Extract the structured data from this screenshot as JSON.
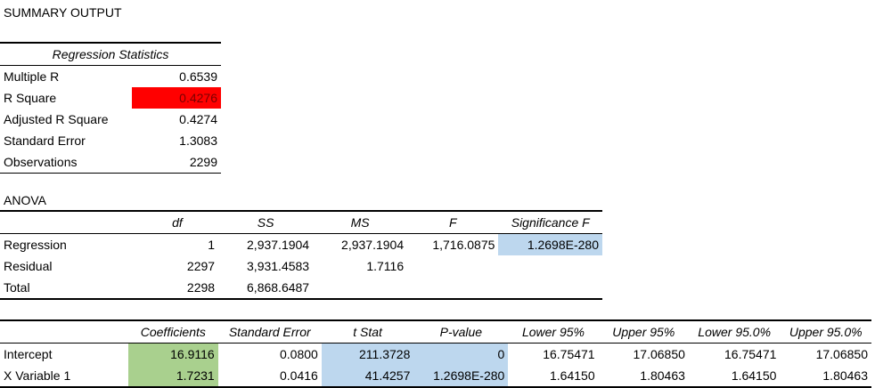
{
  "title": "SUMMARY OUTPUT",
  "regression_statistics": {
    "header": "Regression Statistics",
    "rows": [
      {
        "label": "Multiple R",
        "value": "0.6539"
      },
      {
        "label": "R Square",
        "value": "0.4276"
      },
      {
        "label": "Adjusted R Square",
        "value": "0.4274"
      },
      {
        "label": "Standard Error",
        "value": "1.3083"
      },
      {
        "label": "Observations",
        "value": "2299"
      }
    ]
  },
  "anova": {
    "title": "ANOVA",
    "headers": [
      "",
      "df",
      "SS",
      "MS",
      "F",
      "Significance F"
    ],
    "rows": [
      {
        "label": "Regression",
        "df": "1",
        "ss": "2,937.1904",
        "ms": "2,937.1904",
        "f": "1,716.0875",
        "sig_f": "1.2698E-280"
      },
      {
        "label": "Residual",
        "df": "2297",
        "ss": "3,931.4583",
        "ms": "1.7116",
        "f": "",
        "sig_f": ""
      },
      {
        "label": "Total",
        "df": "2298",
        "ss": "6,868.6487",
        "ms": "",
        "f": "",
        "sig_f": ""
      }
    ]
  },
  "coefficients": {
    "headers": [
      "",
      "Coefficients",
      "Standard Error",
      "t Stat",
      "P-value",
      "Lower 95%",
      "Upper 95%",
      "Lower 95.0%",
      "Upper 95.0%"
    ],
    "rows": [
      {
        "label": "Intercept",
        "coef": "16.9116",
        "se": "0.0800",
        "t": "211.3728",
        "p": "0",
        "l95": "16.75471",
        "u95": "17.06850",
        "l950": "16.75471",
        "u950": "17.06850"
      },
      {
        "label": "X Variable 1",
        "coef": "1.7231",
        "se": "0.0416",
        "t": "41.4257",
        "p": "1.2698E-280",
        "l95": "1.64150",
        "u95": "1.80463",
        "l950": "1.64150",
        "u950": "1.80463"
      }
    ]
  },
  "colors": {
    "highlight_red": "#ff0000",
    "highlight_blue": "#bdd7ee",
    "highlight_green": "#a9d08e"
  }
}
